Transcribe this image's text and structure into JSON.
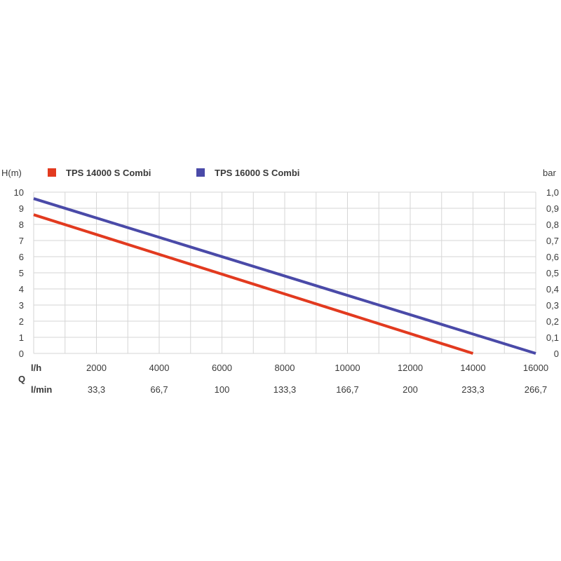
{
  "chart_data": {
    "type": "line",
    "y_left_label": "H(m)",
    "y_right_label": "bar",
    "x_label": "Q",
    "x_row1_unit": "l/h",
    "x_row2_unit": "l/min",
    "x_ticks_lh": [
      "2000",
      "4000",
      "6000",
      "8000",
      "10000",
      "12000",
      "14000",
      "16000"
    ],
    "x_ticks_lmin": [
      "33,3",
      "66,7",
      "100",
      "133,3",
      "166,7",
      "200",
      "233,3",
      "266,7"
    ],
    "y_left_ticks": [
      "10",
      "9",
      "8",
      "7",
      "6",
      "5",
      "4",
      "3",
      "2",
      "1",
      "0"
    ],
    "y_right_ticks": [
      "1,0",
      "0,9",
      "0,8",
      "0,7",
      "0,6",
      "0,5",
      "0,4",
      "0,3",
      "0,2",
      "0,1",
      "0"
    ],
    "xlim": [
      0,
      16000
    ],
    "ylim": [
      0,
      10
    ],
    "grid": true,
    "legend_position": "top",
    "series": [
      {
        "name": "TPS 14000 S Combi",
        "color": "#e23a1f",
        "x": [
          0,
          14000
        ],
        "y": [
          8.6,
          0
        ]
      },
      {
        "name": "TPS 16000 S Combi",
        "color": "#4a4aa8",
        "x": [
          0,
          16000
        ],
        "y": [
          9.6,
          0
        ]
      }
    ]
  }
}
